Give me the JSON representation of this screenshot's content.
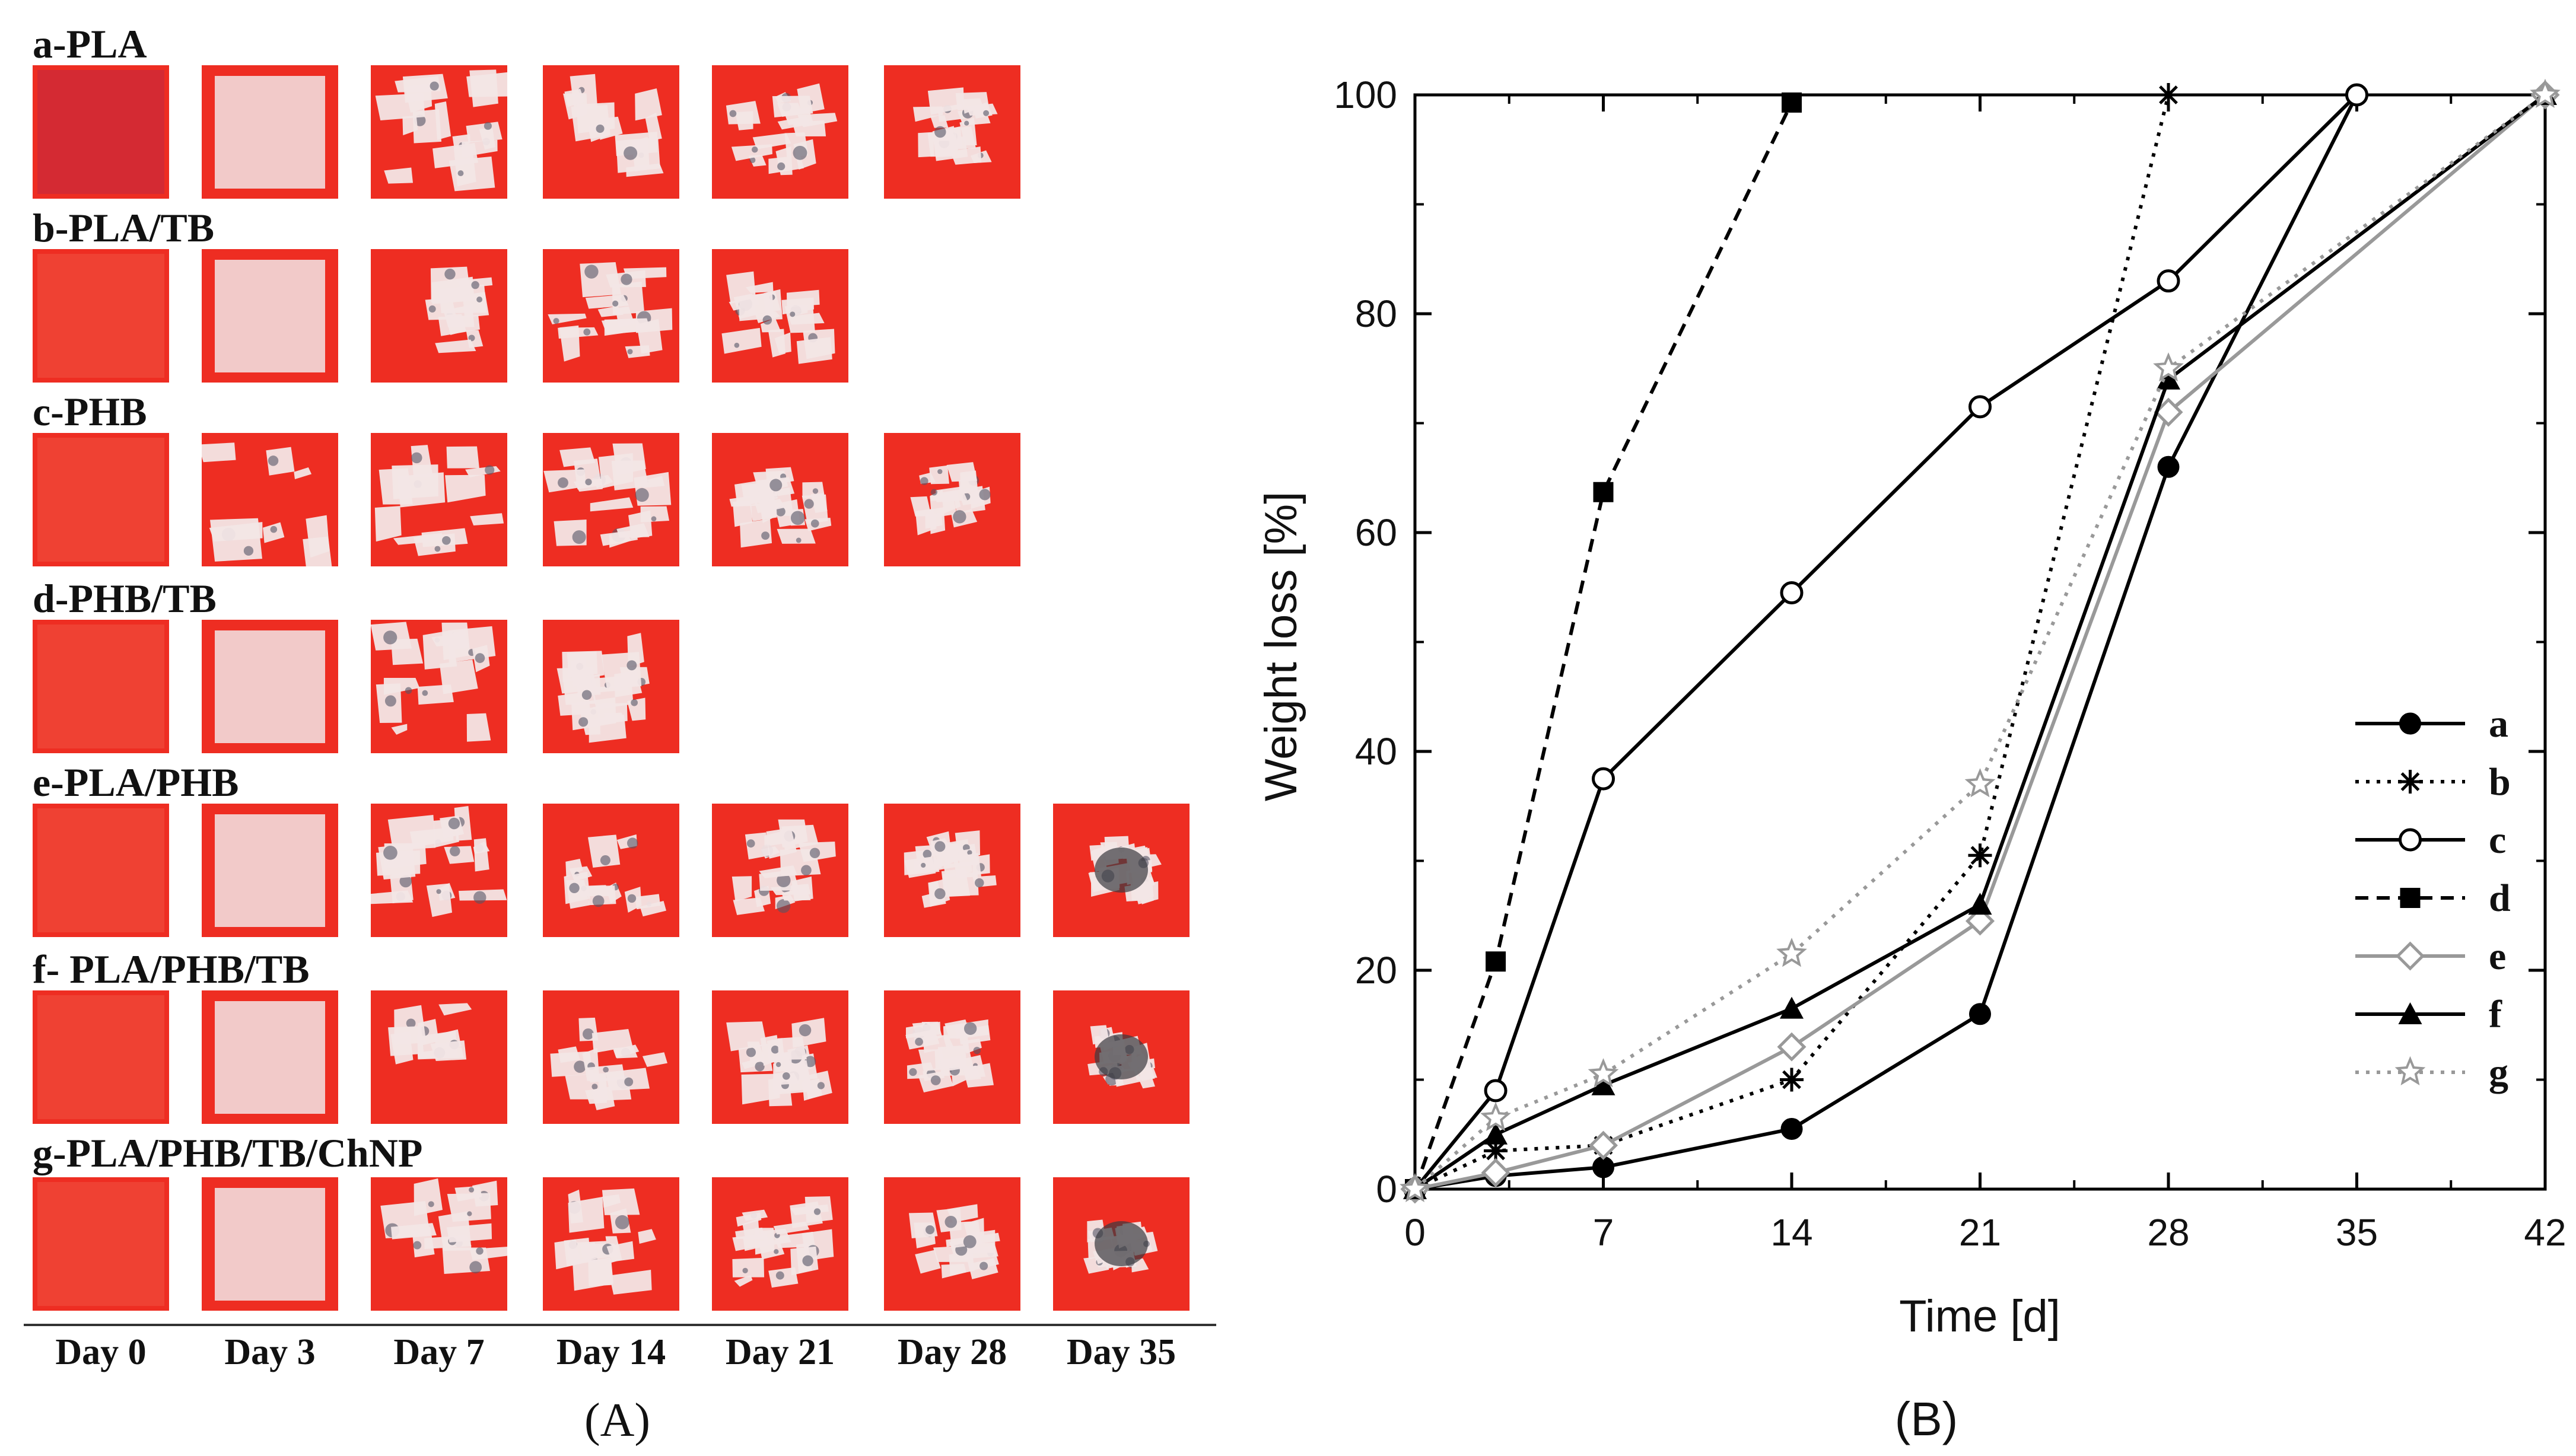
{
  "panel_a": {
    "caption": "(A)",
    "days": [
      "Day 0",
      "Day 3",
      "Day 7",
      "Day 14",
      "Day 21",
      "Day 28",
      "Day 35"
    ],
    "rows": [
      {
        "label": "a-PLA",
        "tiles": 6
      },
      {
        "label": "b-PLA/TB",
        "tiles": 5
      },
      {
        "label": "c-PHB",
        "tiles": 6
      },
      {
        "label": "d-PHB/TB",
        "tiles": 4
      },
      {
        "label": "e-PLA/PHB",
        "tiles": 7
      },
      {
        "label": "f- PLA/PHB/TB",
        "tiles": 7
      },
      {
        "label": "g-PLA/PHB/TB/ChNP",
        "tiles": 7
      }
    ],
    "colors": {
      "background_red": "#ee2d22",
      "film": "#f2e6e6"
    }
  },
  "panel_b": {
    "caption": "(B)"
  },
  "chart_data": {
    "type": "line",
    "xlabel": "Time [d]",
    "ylabel": "Weight loss [%]",
    "xlim": [
      0,
      42
    ],
    "ylim": [
      0,
      100
    ],
    "xticks": [
      0,
      7,
      14,
      21,
      28,
      35,
      42
    ],
    "yticks": [
      0,
      20,
      40,
      60,
      80,
      100
    ],
    "grid": false,
    "legend_position": "right",
    "series": [
      {
        "name": "a",
        "marker": "filled-circle",
        "color": "#000000",
        "dash": "solid",
        "x": [
          0,
          3,
          7,
          14,
          21,
          28,
          35
        ],
        "y": [
          0,
          1.2,
          2,
          5.5,
          16,
          66,
          100
        ]
      },
      {
        "name": "b",
        "marker": "asterisk",
        "color": "#000000",
        "dash": "dotted",
        "x": [
          0,
          3,
          7,
          14,
          21,
          28
        ],
        "y": [
          0,
          3.5,
          4,
          10,
          30.5,
          100
        ]
      },
      {
        "name": "c",
        "marker": "open-circle",
        "color": "#000000",
        "dash": "solid",
        "x": [
          0,
          3,
          7,
          14,
          21,
          28,
          35
        ],
        "y": [
          0,
          9,
          37.5,
          54.5,
          71.5,
          83,
          100
        ]
      },
      {
        "name": "d",
        "marker": "filled-square",
        "color": "#000000",
        "dash": "dashed",
        "x": [
          0,
          3,
          7,
          14
        ],
        "y": [
          0,
          20.8,
          63.7,
          99.3
        ]
      },
      {
        "name": "e",
        "marker": "open-diamond",
        "color": "#999999",
        "dash": "solid",
        "x": [
          0,
          3,
          7,
          14,
          21,
          28,
          42
        ],
        "y": [
          0,
          1.5,
          4,
          13,
          24.5,
          71,
          100
        ]
      },
      {
        "name": "f",
        "marker": "filled-triangle",
        "color": "#000000",
        "dash": "solid",
        "x": [
          0,
          3,
          7,
          14,
          21,
          28,
          42
        ],
        "y": [
          0,
          5,
          9.5,
          16.5,
          26,
          74,
          100
        ]
      },
      {
        "name": "g",
        "marker": "open-star",
        "color": "#999999",
        "dash": "dotted",
        "x": [
          0,
          3,
          7,
          14,
          21,
          28,
          42
        ],
        "y": [
          0,
          6.5,
          10.5,
          21.5,
          37,
          75,
          100
        ]
      }
    ]
  }
}
